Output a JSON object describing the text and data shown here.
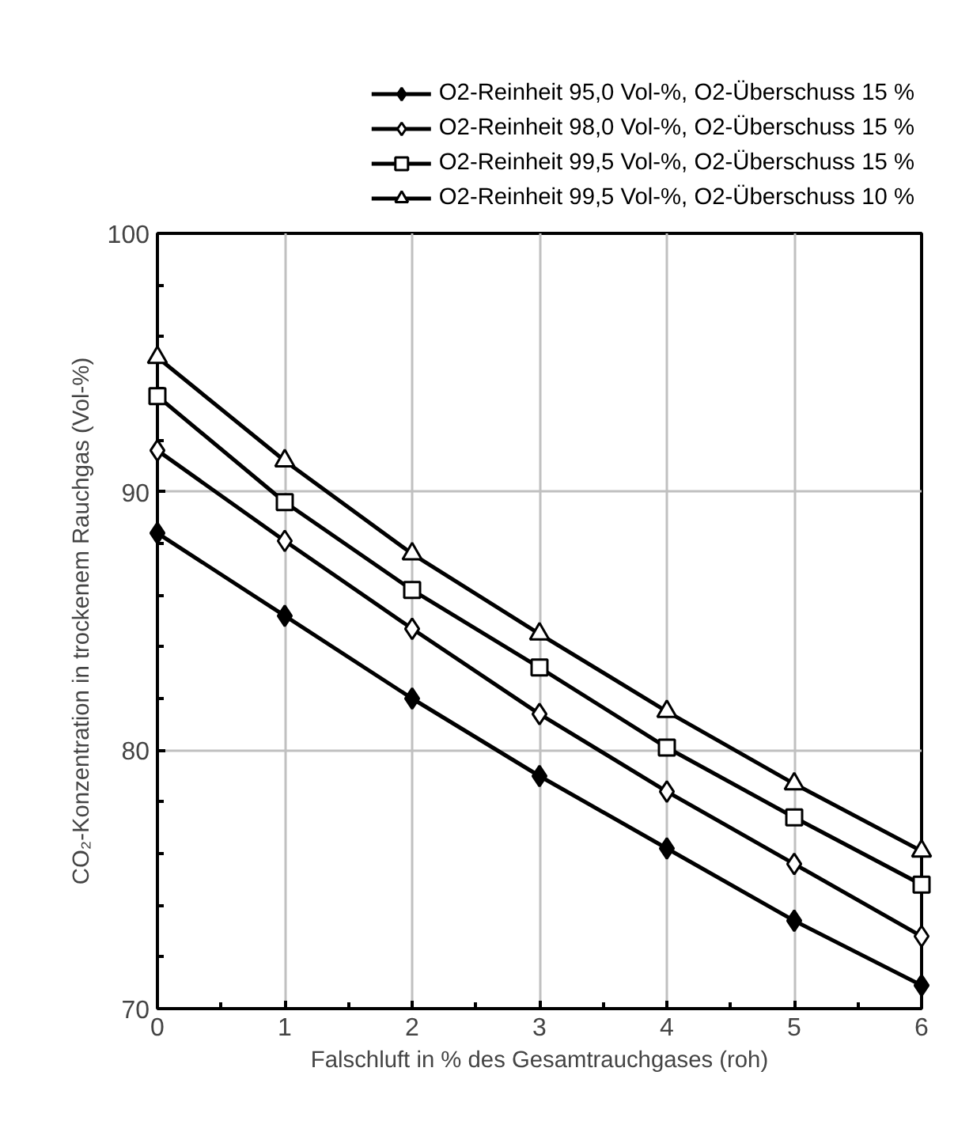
{
  "chart_data": {
    "type": "line",
    "xlabel": "Falschluft in % des Gesamtrauchgases (roh)",
    "ylabel": "CO₂-Konzentration in trockenem Rauchgas (Vol-%)",
    "x": [
      0,
      1,
      2,
      3,
      4,
      5,
      6
    ],
    "series": [
      {
        "name": "O2-Reinheit 95,0 Vol-%, O2-Überschuss 15 %",
        "color": "#000000",
        "marker": "diamond",
        "values": [
          88.4,
          85.2,
          82.0,
          79.0,
          76.2,
          73.4,
          70.9
        ]
      },
      {
        "name": "O2-Reinheit 98,0 Vol-%, O2-Überschuss 15 %",
        "color": "#000000",
        "marker": "diamond",
        "values": [
          91.6,
          88.1,
          84.7,
          81.4,
          78.4,
          75.6,
          72.8
        ]
      },
      {
        "name": "O2-Reinheit 99,5 Vol-%, O2-Überschuss 15 %",
        "color": "#000000",
        "marker": "square",
        "values": [
          93.7,
          89.6,
          86.2,
          83.2,
          80.1,
          77.4,
          74.8
        ]
      },
      {
        "name": "O2-Reinheit 99,5 Vol-%, O2-Überschuss 10 %",
        "color": "#000000",
        "marker": "triangle",
        "values": [
          95.2,
          91.2,
          87.6,
          84.5,
          81.5,
          78.7,
          76.1
        ]
      }
    ],
    "xlim": [
      0,
      6
    ],
    "xticks": [
      0,
      1,
      2,
      3,
      4,
      5,
      6
    ],
    "ylim": [
      70,
      100
    ],
    "yticks": [
      70,
      80,
      90,
      100
    ],
    "grid": true,
    "legend": "top",
    "line_style": "solid"
  }
}
